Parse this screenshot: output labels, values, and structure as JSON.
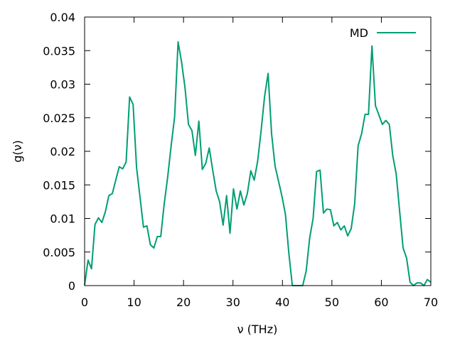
{
  "chart_data": {
    "type": "line",
    "title": "",
    "xlabel": "ν (THz)",
    "ylabel": "g(ν)",
    "xlim": [
      0,
      70
    ],
    "ylim": [
      0,
      0.04
    ],
    "x_ticks": [
      0,
      10,
      20,
      30,
      40,
      50,
      60,
      70
    ],
    "y_ticks": [
      0,
      0.005,
      0.01,
      0.015,
      0.02,
      0.025,
      0.03,
      0.035,
      0.04
    ],
    "x_tick_labels": [
      "0",
      "10",
      "20",
      "30",
      "40",
      "50",
      "60",
      "70"
    ],
    "y_tick_labels": [
      "0",
      "0.005",
      "0.01",
      "0.015",
      "0.02",
      "0.025",
      "0.03",
      "0.035",
      "0.04"
    ],
    "grid": false,
    "legend_position": "top-right",
    "series": [
      {
        "name": "MD",
        "color": "#009e73",
        "x": [
          0,
          0.7,
          1.4,
          2.1,
          2.8,
          3.5,
          4.2,
          4.9,
          5.6,
          6.3,
          7.0,
          7.7,
          8.4,
          9.1,
          9.8,
          10.5,
          11.2,
          11.9,
          12.6,
          13.3,
          14.0,
          14.7,
          15.4,
          16.1,
          16.8,
          17.5,
          18.2,
          18.9,
          19.6,
          20.3,
          21.0,
          21.7,
          22.4,
          23.1,
          23.8,
          24.5,
          25.2,
          25.9,
          26.6,
          27.3,
          28.0,
          28.7,
          29.4,
          30.1,
          30.8,
          31.5,
          32.2,
          32.9,
          33.6,
          34.3,
          35.0,
          35.7,
          36.4,
          37.1,
          37.8,
          38.5,
          39.2,
          39.9,
          40.6,
          41.3,
          42.0,
          42.7,
          43.4,
          44.1,
          44.8,
          45.5,
          46.2,
          46.9,
          47.6,
          48.3,
          49.0,
          49.7,
          50.4,
          51.1,
          51.8,
          52.5,
          53.2,
          53.9,
          54.6,
          55.3,
          56.0,
          56.7,
          57.4,
          58.1,
          58.8,
          59.5,
          60.2,
          60.9,
          61.6,
          62.3,
          63.0,
          63.7,
          64.4,
          65.1,
          65.8,
          66.5,
          67.2,
          67.9,
          68.6,
          69.3,
          70.0
        ],
        "values": [
          0.0001,
          0.0038,
          0.0025,
          0.0091,
          0.0101,
          0.0094,
          0.011,
          0.0134,
          0.0137,
          0.0157,
          0.0177,
          0.0174,
          0.0184,
          0.0281,
          0.027,
          0.0176,
          0.0132,
          0.0087,
          0.0089,
          0.0061,
          0.0056,
          0.0073,
          0.0073,
          0.0122,
          0.0162,
          0.0209,
          0.0251,
          0.0363,
          0.0333,
          0.0295,
          0.024,
          0.0231,
          0.0194,
          0.0245,
          0.0173,
          0.0182,
          0.0205,
          0.0172,
          0.0141,
          0.0125,
          0.009,
          0.0134,
          0.0078,
          0.0144,
          0.0114,
          0.0141,
          0.012,
          0.0137,
          0.0171,
          0.0157,
          0.0186,
          0.0232,
          0.0282,
          0.0316,
          0.0226,
          0.0178,
          0.0156,
          0.0133,
          0.0106,
          0.0048,
          0.0,
          0.0,
          0.0,
          0.0,
          0.0022,
          0.0071,
          0.01,
          0.017,
          0.0172,
          0.0108,
          0.0114,
          0.0113,
          0.0089,
          0.0094,
          0.0083,
          0.0089,
          0.0074,
          0.0085,
          0.0122,
          0.0208,
          0.0226,
          0.0255,
          0.0255,
          0.0357,
          0.0268,
          0.0254,
          0.024,
          0.0246,
          0.024,
          0.0194,
          0.0166,
          0.011,
          0.0056,
          0.0041,
          0.0005,
          0.0,
          0.0004,
          0.0004,
          0.0,
          0.0009,
          0.0005
        ]
      }
    ]
  }
}
